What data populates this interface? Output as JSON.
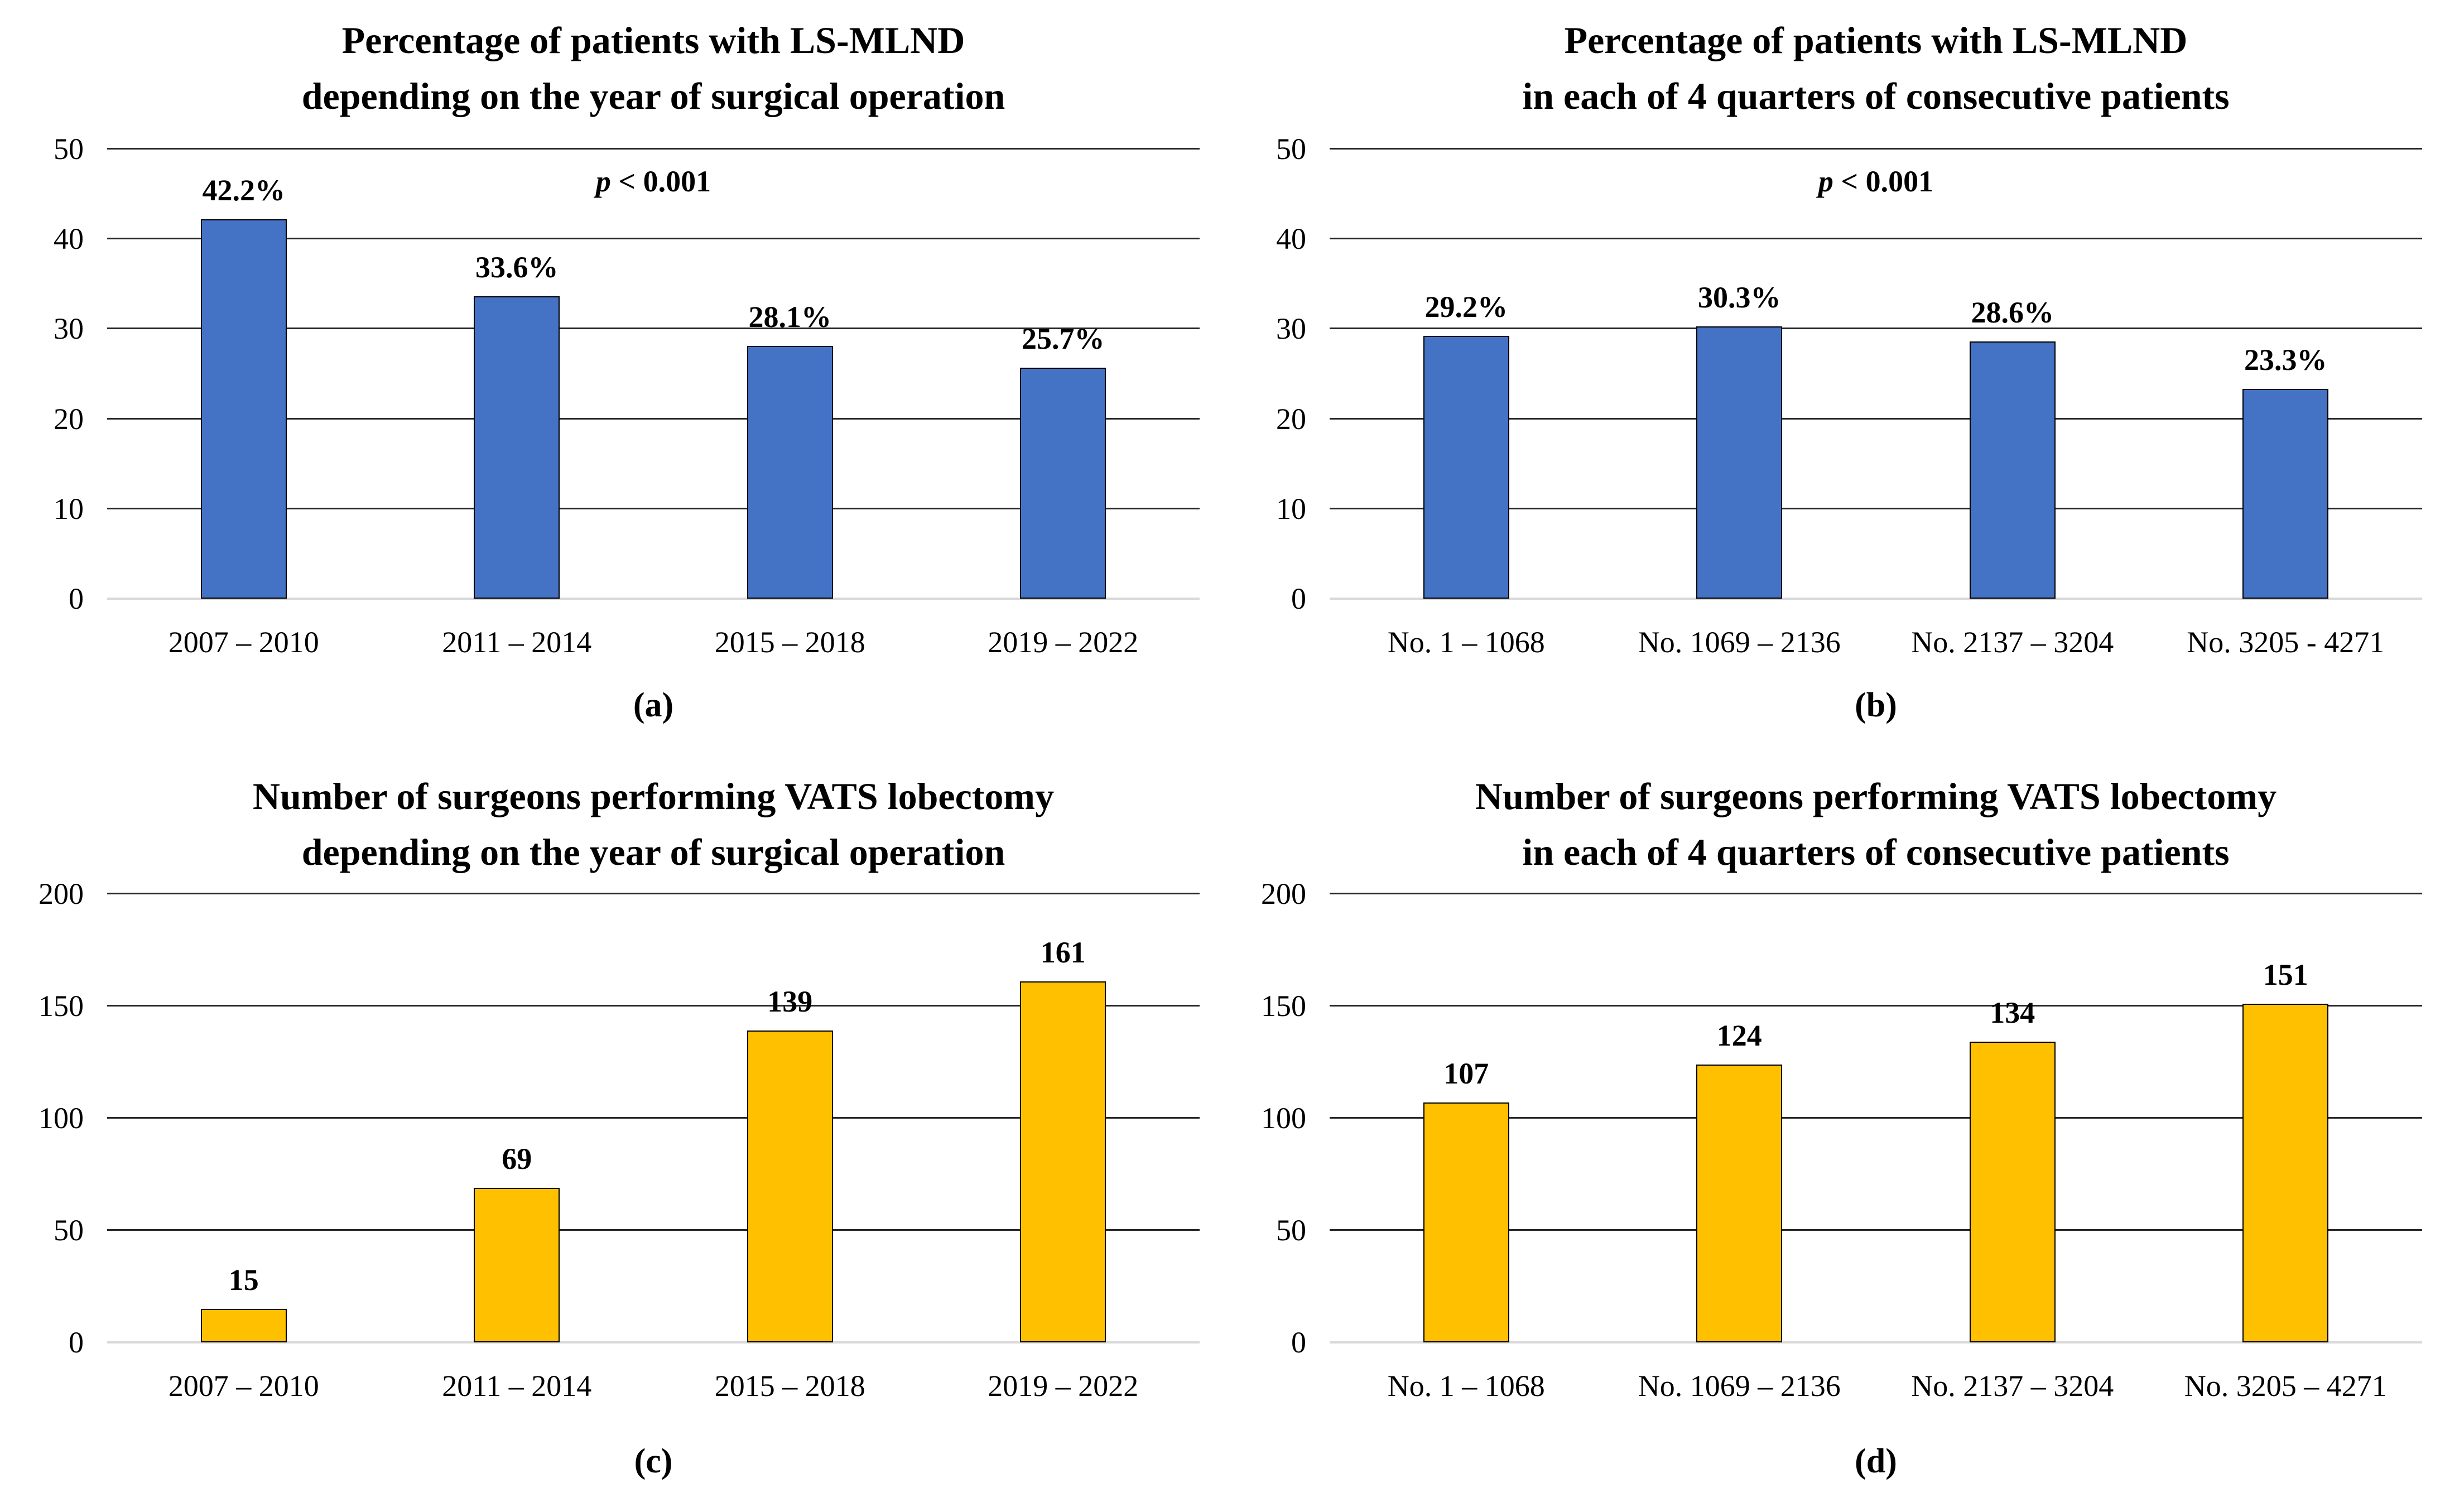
{
  "figure": {
    "background_color": "#FFFFFF",
    "text_color": "#000000",
    "blue_bar_color": "#4472C4",
    "yellow_bar_color": "#FFC000"
  },
  "chart_data": [
    {
      "type": "bar",
      "panel": "(a)",
      "title_line1": "Percentage of patients with LS-MLND",
      "title_line2": "depending on the year of surgical operation",
      "annotation_var": "p",
      "annotation_rest": " < 0.001",
      "categories": [
        "2007 – 2010",
        "2011 – 2014",
        "2015 – 2018",
        "2019 – 2022"
      ],
      "values": [
        42.2,
        33.6,
        28.1,
        25.7
      ],
      "bar_labels": [
        "42.2%",
        "33.6%",
        "28.1%",
        "25.7%"
      ],
      "yticks": [
        0,
        10,
        20,
        30,
        40,
        50
      ],
      "ylim": [
        0,
        50
      ],
      "bar_color": "#4472C4",
      "grid": "on",
      "legend": "none",
      "xlabel": "",
      "ylabel": ""
    },
    {
      "type": "bar",
      "panel": "(b)",
      "title_line1": "Percentage of patients with LS-MLND",
      "title_line2": "in each of 4 quarters of consecutive patients",
      "annotation_var": "p",
      "annotation_rest": " < 0.001",
      "categories": [
        "No. 1 – 1068",
        "No. 1069 – 2136",
        "No. 2137 – 3204",
        "No. 3205 - 4271"
      ],
      "values": [
        29.2,
        30.3,
        28.6,
        23.3
      ],
      "bar_labels": [
        "29.2%",
        "30.3%",
        "28.6%",
        "23.3%"
      ],
      "yticks": [
        0,
        10,
        20,
        30,
        40,
        50
      ],
      "ylim": [
        0,
        50
      ],
      "bar_color": "#4472C4",
      "grid": "on",
      "legend": "none",
      "xlabel": "",
      "ylabel": ""
    },
    {
      "type": "bar",
      "panel": "(c)",
      "title_line1": "Number of surgeons performing VATS lobectomy",
      "title_line2": "depending on the year of surgical operation",
      "categories": [
        "2007 – 2010",
        "2011 – 2014",
        "2015 – 2018",
        "2019 – 2022"
      ],
      "values": [
        15,
        69,
        139,
        161
      ],
      "bar_labels": [
        "15",
        "69",
        "139",
        "161"
      ],
      "yticks": [
        0,
        50,
        100,
        150,
        200
      ],
      "ylim": [
        0,
        200
      ],
      "bar_color": "#FFC000",
      "grid": "on",
      "legend": "none",
      "xlabel": "",
      "ylabel": ""
    },
    {
      "type": "bar",
      "panel": "(d)",
      "title_line1": "Number of surgeons performing VATS lobectomy",
      "title_line2": "in each of 4 quarters of consecutive patients",
      "categories": [
        "No. 1 – 1068",
        "No. 1069 – 2136",
        "No. 2137 – 3204",
        "No. 3205 – 4271"
      ],
      "values": [
        107,
        124,
        134,
        151
      ],
      "bar_labels": [
        "107",
        "124",
        "134",
        "151"
      ],
      "yticks": [
        0,
        50,
        100,
        150,
        200
      ],
      "ylim": [
        0,
        200
      ],
      "bar_color": "#FFC000",
      "grid": "on",
      "legend": "none",
      "xlabel": "",
      "ylabel": ""
    }
  ]
}
